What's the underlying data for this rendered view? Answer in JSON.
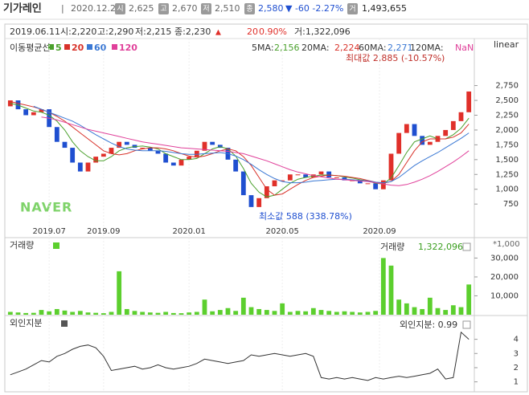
{
  "header": {
    "name": "기가레인",
    "date": "2020.12.22",
    "open_label": "시",
    "open": "2,625",
    "high_label": "고",
    "high": "2,670",
    "low_label": "저",
    "low": "2,510",
    "close_label": "종",
    "close": "2,580",
    "change": "▼ -60 -2.27%",
    "volume_label": "거",
    "volume": "1,493,655"
  },
  "info": {
    "date": "2019.06.11",
    "open": "시:2,220",
    "high": "고:2,290",
    "low": "저:2,215",
    "close": "종:2,230",
    "change_mark": "▲",
    "change_value": "20",
    "change_pct": "0.90%",
    "volume": "거:1,322,096"
  },
  "chart_data": [
    {
      "type": "candlestick",
      "legend_title": "이동평균선",
      "scale": "linear",
      "watermark": "NAVER",
      "ma_readout": [
        {
          "label": "5MA:",
          "value": "2,156"
        },
        {
          "label": "20MA:",
          "value": "2,224"
        },
        {
          "label": "60MA:",
          "value": "2,271"
        },
        {
          "label": "120MA:",
          "value": "NaN"
        }
      ],
      "annotations": [
        {
          "text": "최대값 2,885 (-10.57%)"
        },
        {
          "text": "최소값 588 (338.78%)"
        }
      ],
      "up_color": "#e0302a",
      "down_color": "#1f4fd0",
      "xlim": [
        0,
        60
      ],
      "xticks": [
        {
          "value": 5.5,
          "label": "2019.07"
        },
        {
          "value": 12.5,
          "label": "2019.09"
        },
        {
          "value": 23.5,
          "label": "2020.01"
        },
        {
          "value": 35.5,
          "label": "2020.05"
        },
        {
          "value": 48,
          "label": "2020.09"
        }
      ],
      "ylim": [
        400,
        3300
      ],
      "yticks": [
        750,
        {
          "value": 1000,
          "label": "1,000"
        },
        {
          "value": 1250,
          "label": "1,250"
        },
        {
          "value": 1500,
          "label": "1,500"
        },
        {
          "value": 1750,
          "label": "1,750"
        },
        {
          "value": 2000,
          "label": "2,000"
        },
        {
          "value": 2250,
          "label": "2,250"
        },
        {
          "value": 2500,
          "label": "2,500"
        },
        {
          "value": 2750,
          "label": "2,750"
        }
      ],
      "open": [
        2400,
        2500,
        2350,
        2250,
        2300,
        2350,
        2050,
        1800,
        1700,
        1450,
        1300,
        1450,
        1550,
        1600,
        1700,
        1800,
        1750,
        1700,
        1700,
        1650,
        1600,
        1450,
        1400,
        1500,
        1550,
        1650,
        1800,
        1750,
        1700,
        1500,
        1300,
        900,
        700,
        850,
        1050,
        1150,
        1150,
        1250,
        1250,
        1200,
        1250,
        1300,
        1200,
        1200,
        1150,
        1150,
        1100,
        1100,
        1000,
        1150,
        1600,
        1950,
        2100,
        1900,
        1750,
        1800,
        1900,
        2000,
        2150,
        2300
      ],
      "close": [
        2500,
        2350,
        2250,
        2300,
        2350,
        2050,
        1800,
        1700,
        1450,
        1300,
        1450,
        1550,
        1600,
        1700,
        1800,
        1750,
        1700,
        1700,
        1650,
        1600,
        1450,
        1400,
        1500,
        1550,
        1650,
        1800,
        1750,
        1700,
        1500,
        1300,
        900,
        700,
        850,
        1050,
        1150,
        1150,
        1250,
        1250,
        1200,
        1250,
        1300,
        1200,
        1200,
        1150,
        1150,
        1100,
        1100,
        1000,
        1150,
        1600,
        1950,
        2100,
        1900,
        1750,
        1800,
        1900,
        2000,
        2150,
        2300,
        2650
      ],
      "series": [
        {
          "name": "5",
          "color": "#4aa02c",
          "values": [
            2450,
            2420,
            2370,
            2320,
            2300,
            2250,
            2150,
            2000,
            1800,
            1650,
            1550,
            1480,
            1480,
            1550,
            1650,
            1700,
            1720,
            1730,
            1710,
            1680,
            1600,
            1550,
            1500,
            1500,
            1520,
            1600,
            1680,
            1720,
            1680,
            1560,
            1350,
            1100,
            950,
            870,
            900,
            1000,
            1100,
            1170,
            1200,
            1220,
            1240,
            1240,
            1230,
            1210,
            1190,
            1160,
            1140,
            1100,
            1090,
            1190,
            1400,
            1620,
            1800,
            1850,
            1900,
            1850,
            1850,
            1920,
            2030,
            2200
          ]
        },
        {
          "name": "20",
          "color": "#d8322a",
          "values": [
            2480,
            2450,
            2420,
            2390,
            2350,
            2300,
            2230,
            2150,
            2050,
            1950,
            1850,
            1750,
            1650,
            1600,
            1580,
            1600,
            1650,
            1680,
            1700,
            1700,
            1680,
            1650,
            1600,
            1560,
            1540,
            1560,
            1600,
            1650,
            1680,
            1650,
            1550,
            1400,
            1200,
            1000,
            900,
            920,
            1000,
            1080,
            1150,
            1200,
            1220,
            1240,
            1230,
            1220,
            1200,
            1180,
            1150,
            1120,
            1100,
            1130,
            1250,
            1450,
            1650,
            1800,
            1850,
            1850,
            1850,
            1880,
            1950,
            2100
          ]
        },
        {
          "name": "60",
          "color": "#3a78d4",
          "values": [
            null,
            null,
            null,
            2400,
            2350,
            2300,
            2250,
            2200,
            2150,
            2080,
            2000,
            1920,
            1850,
            1780,
            1720,
            1680,
            1660,
            1650,
            1650,
            1650,
            1640,
            1620,
            1600,
            1590,
            1590,
            1600,
            1610,
            1620,
            1600,
            1560,
            1500,
            1420,
            1330,
            1250,
            1180,
            1130,
            1110,
            1110,
            1120,
            1140,
            1150,
            1160,
            1170,
            1170,
            1160,
            1150,
            1140,
            1120,
            1110,
            1130,
            1200,
            1300,
            1400,
            1480,
            1550,
            1620,
            1700,
            1780,
            1860,
            1950
          ]
        },
        {
          "name": "120",
          "color": "#e0409a",
          "values": [
            null,
            null,
            null,
            null,
            2220,
            2200,
            2170,
            2130,
            2090,
            2050,
            2010,
            1980,
            1950,
            1920,
            1890,
            1860,
            1830,
            1800,
            1780,
            1760,
            1740,
            1720,
            1700,
            1690,
            1680,
            1670,
            1660,
            1650,
            1640,
            1620,
            1600,
            1560,
            1520,
            1480,
            1430,
            1380,
            1330,
            1290,
            1260,
            1230,
            1210,
            1190,
            1170,
            1160,
            1150,
            1140,
            1130,
            1110,
            1090,
            1070,
            1060,
            1080,
            1120,
            1170,
            1230,
            1300,
            1380,
            1460,
            1550,
            1650
          ]
        }
      ]
    },
    {
      "type": "bar",
      "title": "거래량",
      "readout_label": "거래량",
      "readout": "1,322,096",
      "unit": "*1,000",
      "color": "#5ccf2e",
      "xlim": [
        0,
        60
      ],
      "ylim": [
        0,
        34000
      ],
      "yticks": [
        {
          "value": 10000,
          "label": "10,000"
        },
        {
          "value": 20000,
          "label": "20,000"
        },
        {
          "value": 30000,
          "label": "30,000"
        }
      ],
      "values": [
        1500,
        1200,
        900,
        1000,
        2500,
        1800,
        3000,
        2200,
        1500,
        2000,
        1200,
        1000,
        800,
        1500,
        23000,
        3000,
        2000,
        1500,
        1200,
        1000,
        1500,
        900,
        800,
        1200,
        1500,
        8000,
        1800,
        2500,
        3500,
        2000,
        9000,
        4000,
        3000,
        2500,
        2000,
        6000,
        1500,
        2000,
        1800,
        3500,
        2500,
        2000,
        1500,
        1800,
        1500,
        1200,
        1500,
        2000,
        30000,
        26000,
        8000,
        6000,
        4000,
        3000,
        9000,
        3500,
        2500,
        5000,
        4000,
        16000
      ]
    },
    {
      "type": "line",
      "title": "외인지분",
      "readout": "외인지분: 0.99",
      "color": "#333333",
      "xlim": [
        0,
        60
      ],
      "ylim": [
        0.3,
        4.6
      ],
      "yticks": [
        1,
        2,
        3,
        4
      ],
      "values": [
        1.5,
        1.7,
        1.9,
        2.2,
        2.5,
        2.4,
        2.8,
        3.0,
        3.3,
        3.5,
        3.6,
        3.4,
        2.8,
        1.8,
        1.9,
        2.0,
        2.1,
        1.9,
        2.0,
        2.2,
        2.0,
        1.9,
        2.0,
        2.1,
        2.3,
        2.6,
        2.5,
        2.4,
        2.3,
        2.4,
        2.5,
        2.9,
        2.8,
        2.9,
        3.0,
        2.9,
        2.8,
        2.9,
        3.0,
        2.8,
        1.3,
        1.2,
        1.3,
        1.2,
        1.3,
        1.2,
        1.1,
        1.3,
        1.2,
        1.3,
        1.4,
        1.3,
        1.4,
        1.5,
        1.6,
        1.9,
        1.2,
        1.3,
        4.5,
        4.0
      ]
    }
  ]
}
